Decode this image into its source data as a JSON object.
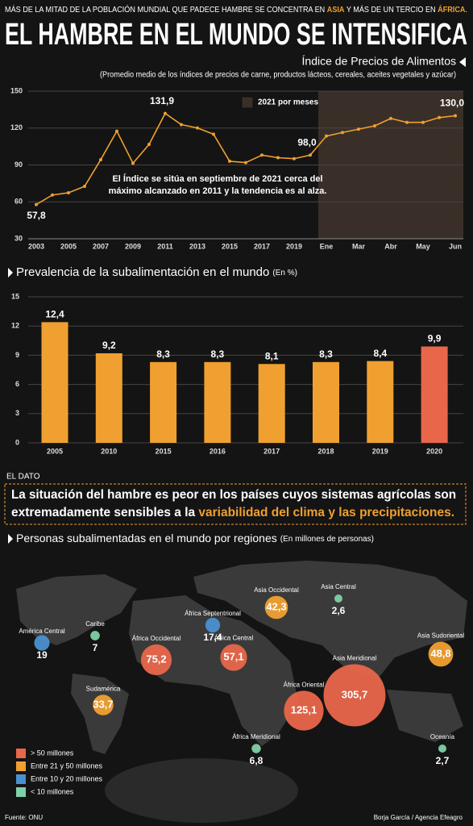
{
  "header": {
    "kicker": [
      "MÁS DE LA MITAD DE LA POBLACIÓN MUNDIAL QUE PADECE HAMBRE SE CONCENTRA EN ",
      "ASIA",
      " Y MÁS DE UN TERCIO EN ",
      "ÁFRICA",
      "."
    ],
    "title": "EL HAMBRE EN EL MUNDO SE INTENSIFICA"
  },
  "chart_data": [
    {
      "type": "line",
      "title": "Índice de Precios de Alimentos",
      "subtitle": "(Promedio medio de los índices de precios de carne, productos lácteos, cereales, aceites vegetales y azúcar)",
      "categories": [
        "2003",
        null,
        "2005",
        null,
        "2007",
        null,
        "2009",
        null,
        "2011",
        null,
        "2013",
        null,
        "2015",
        null,
        "2017",
        null,
        "2019",
        null,
        "Ene",
        null,
        "Mar",
        null,
        "Abr",
        null,
        "May",
        null,
        "Jun"
      ],
      "values": [
        57.8,
        65.6,
        67.4,
        72.6,
        94.3,
        117.5,
        91.4,
        106.7,
        131.9,
        122.8,
        120.1,
        115.0,
        93.0,
        91.9,
        98.0,
        95.9,
        95.1,
        98.0,
        113.5,
        116.4,
        119.1,
        121.8,
        127.8,
        124.6,
        124.6,
        128.5,
        130.0
      ],
      "value_labels": [
        "57,8",
        null,
        null,
        null,
        null,
        null,
        null,
        null,
        "131,9",
        null,
        null,
        null,
        null,
        null,
        null,
        null,
        null,
        "98,0",
        null,
        null,
        null,
        null,
        null,
        null,
        null,
        null,
        "130,0"
      ],
      "color": "#f0a030",
      "ylim": [
        30,
        150
      ],
      "yticks": [
        30,
        60,
        90,
        120,
        150
      ],
      "grid": true,
      "legend": "2021 por meses",
      "shade_color": "#3a2f28",
      "annotation": [
        "El Índice se sitúa en septiembre de 2021 cerca del",
        "máximo alcanzado en 2011 y la tendencia es al alza."
      ]
    },
    {
      "type": "bar",
      "title": "Prevalencia de la subalimentación en el mundo",
      "unit": "(En %)",
      "categories": [
        "2005",
        "2010",
        "2015",
        "2016",
        "2017",
        "2018",
        "2019",
        "2020"
      ],
      "values": [
        12.4,
        9.2,
        8.3,
        8.3,
        8.1,
        8.3,
        8.4,
        9.9
      ],
      "value_labels": [
        "12,4",
        "9,2",
        "8,3",
        "8,3",
        "8,1",
        "8,3",
        "8,4",
        "9,9"
      ],
      "colors": [
        "#f0a030",
        "#f0a030",
        "#f0a030",
        "#f0a030",
        "#f0a030",
        "#f0a030",
        "#f0a030",
        "#e8664a"
      ],
      "ylim": [
        0,
        15
      ],
      "yticks": [
        0,
        3,
        6,
        9,
        12,
        15
      ],
      "grid": true
    },
    {
      "type": "bubble",
      "title": "Personas subalimentadas en el mundo por regiones",
      "unit": "(En millones de personas)",
      "categories": [
        "América Central",
        "Caribe",
        "Sudamérica",
        "África Occidental",
        "África Septentrional",
        "África Central",
        "Asia Occidental",
        "Asia Central",
        "Asia Meridional",
        "Asia Sudoriental",
        "África Oriental",
        "África Meridional",
        "Oceanía"
      ],
      "values": [
        19,
        7,
        33.7,
        75.2,
        17.4,
        57.1,
        42.3,
        2.6,
        305.7,
        48.8,
        125.1,
        6.8,
        2.7
      ],
      "value_labels": [
        "19",
        "7",
        "33,7",
        "75,2",
        "17,4",
        "57,1",
        "42,3",
        "2,6",
        "305,7",
        "48,8",
        "125,1",
        "6,8",
        "2,7"
      ],
      "colors": [
        "#4a90d0",
        "#7ed0a8",
        "#f0a030",
        "#e8664a",
        "#4a90d0",
        "#e8664a",
        "#f0a030",
        "#7ed0a8",
        "#e8664a",
        "#f0a030",
        "#e8664a",
        "#7ed0a8",
        "#7ed0a8"
      ],
      "legend": [
        {
          "name": "> 50 millones",
          "color": "#e8664a"
        },
        {
          "name": "Entre 21 y 50 millones",
          "color": "#f0a030"
        },
        {
          "name": "Entre 10 y 20 millones",
          "color": "#4a90d0"
        },
        {
          "name": "< 10 millones",
          "color": "#7ed0a8"
        }
      ]
    }
  ],
  "callout": {
    "label": "EL DATO",
    "line1": "La situación del hambre es peor en los países cuyos sistemas agrícolas son",
    "line2": [
      "extremadamente sensibles a la ",
      "variabilidad del clima y las precipitaciones."
    ]
  },
  "footer": {
    "source": "Fuente: ONU",
    "credit": "Borja García / Agencia Efeagro"
  }
}
